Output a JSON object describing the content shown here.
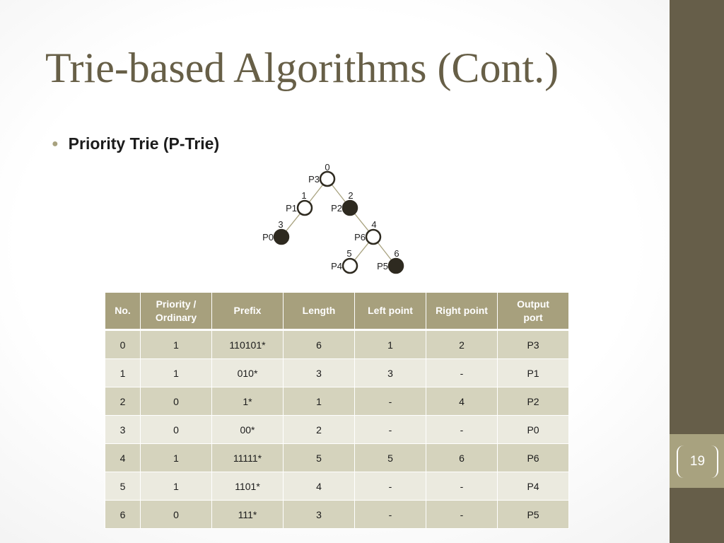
{
  "slide": {
    "title": "Trie-based Algorithms (Cont.)",
    "bullet": "Priority Trie (P-Trie)",
    "page_number": "19"
  },
  "trie": {
    "nodes": [
      {
        "id": "root",
        "port": "P3",
        "index": "0",
        "filled": false
      },
      {
        "id": "n1",
        "port": "P1",
        "index": "1",
        "filled": false
      },
      {
        "id": "n2",
        "port": "P2",
        "index": "2",
        "filled": true
      },
      {
        "id": "n3",
        "port": "P0",
        "index": "3",
        "filled": true
      },
      {
        "id": "n4",
        "port": "P6",
        "index": "4",
        "filled": false
      },
      {
        "id": "n5",
        "port": "P4",
        "index": "5",
        "filled": false
      },
      {
        "id": "n6",
        "port": "P5",
        "index": "6",
        "filled": true
      }
    ],
    "edges": [
      [
        "root",
        "n1"
      ],
      [
        "root",
        "n2"
      ],
      [
        "n1",
        "n3"
      ],
      [
        "n2",
        "n4"
      ],
      [
        "n4",
        "n5"
      ],
      [
        "n4",
        "n6"
      ]
    ]
  },
  "table": {
    "headers": [
      "No.",
      "Priority / Ordinary",
      "Prefix",
      "Length",
      "Left point",
      "Right point",
      "Output port"
    ],
    "rows": [
      [
        "0",
        "1",
        "110101*",
        "6",
        "1",
        "2",
        "P3"
      ],
      [
        "1",
        "1",
        "010*",
        "3",
        "3",
        "-",
        "P1"
      ],
      [
        "2",
        "0",
        "1*",
        "1",
        "-",
        "4",
        "P2"
      ],
      [
        "3",
        "0",
        "00*",
        "2",
        "-",
        "-",
        "P0"
      ],
      [
        "4",
        "1",
        "11111*",
        "5",
        "5",
        "6",
        "P6"
      ],
      [
        "5",
        "1",
        "1101*",
        "4",
        "-",
        "-",
        "P4"
      ],
      [
        "6",
        "0",
        "111*",
        "3",
        "-",
        "-",
        "P5"
      ]
    ]
  },
  "colors": {
    "title": "#675f47",
    "band": "#665e49",
    "accent": "#a8a27f",
    "header_bg": "#a7a07d",
    "row_dark": "#d5d3bd",
    "row_light": "#ebeadf",
    "node_fill": "#2e2a20",
    "edge": "#a8a27f"
  }
}
